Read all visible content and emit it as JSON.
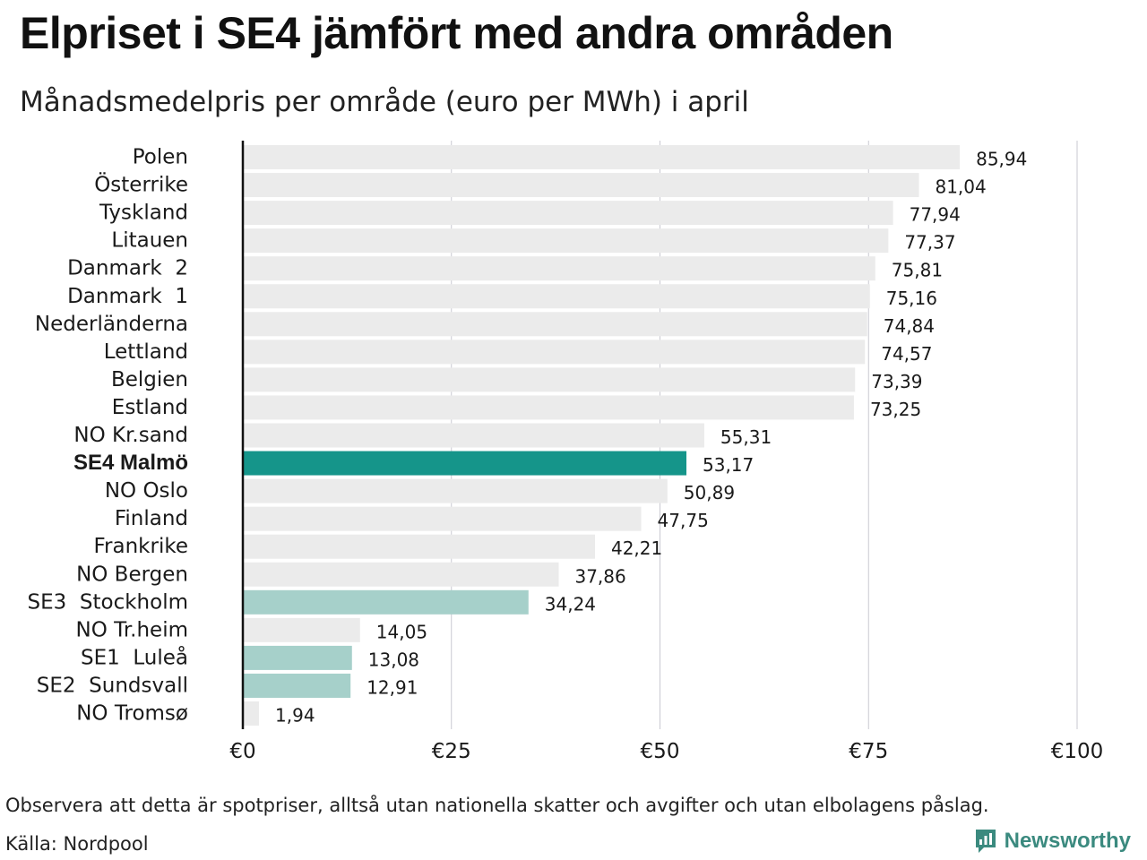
{
  "title": "Elpriset i SE4 jämfört med andra områden",
  "subtitle": "Månadsmedelpris per område (euro per MWh) i april",
  "footnote": "Observera att detta är spotpriser, alltså utan nationella skatter och avgifter och utan elbolagens påslag.",
  "source": "Källa: Nordpool",
  "brand": {
    "name": "Newsworthy",
    "icon": "newsworthy-logo-icon",
    "color": "#3b8a7f"
  },
  "colors": {
    "default_bar": "#ebebeb",
    "highlight_bar": "#15958a",
    "secondary_bar": "#a6d0ca",
    "grid": "#c9c9d1",
    "axis": "#111111"
  },
  "chart_data": {
    "type": "bar",
    "orientation": "horizontal",
    "title": "Elpriset i SE4 jämfört med andra områden",
    "subtitle": "Månadsmedelpris per område (euro per MWh) i april",
    "xlim": [
      0,
      100
    ],
    "xticks": [
      0,
      25,
      50,
      75,
      100
    ],
    "xtick_labels": [
      "€0",
      "€25",
      "€50",
      "€75",
      "€100"
    ],
    "grid": true,
    "bars": [
      {
        "label": "Polen",
        "value": 85.94,
        "value_label": "85,94",
        "highlight": "default"
      },
      {
        "label": "Österrike",
        "value": 81.04,
        "value_label": "81,04",
        "highlight": "default"
      },
      {
        "label": "Tyskland",
        "value": 77.94,
        "value_label": "77,94",
        "highlight": "default"
      },
      {
        "label": "Litauen",
        "value": 77.37,
        "value_label": "77,37",
        "highlight": "default"
      },
      {
        "label": "Danmark  2",
        "value": 75.81,
        "value_label": "75,81",
        "highlight": "default"
      },
      {
        "label": "Danmark  1",
        "value": 75.16,
        "value_label": "75,16",
        "highlight": "default"
      },
      {
        "label": "Nederländerna",
        "value": 74.84,
        "value_label": "74,84",
        "highlight": "default"
      },
      {
        "label": "Lettland",
        "value": 74.57,
        "value_label": "74,57",
        "highlight": "default"
      },
      {
        "label": "Belgien",
        "value": 73.39,
        "value_label": "73,39",
        "highlight": "default"
      },
      {
        "label": "Estland",
        "value": 73.25,
        "value_label": "73,25",
        "highlight": "default"
      },
      {
        "label": "NO Kr.sand",
        "value": 55.31,
        "value_label": "55,31",
        "highlight": "default"
      },
      {
        "label": "SE4 Malmö",
        "value": 53.17,
        "value_label": "53,17",
        "highlight": "primary"
      },
      {
        "label": "NO Oslo",
        "value": 50.89,
        "value_label": "50,89",
        "highlight": "default"
      },
      {
        "label": "Finland",
        "value": 47.75,
        "value_label": "47,75",
        "highlight": "default"
      },
      {
        "label": "Frankrike",
        "value": 42.21,
        "value_label": "42,21",
        "highlight": "default"
      },
      {
        "label": "NO Bergen",
        "value": 37.86,
        "value_label": "37,86",
        "highlight": "default"
      },
      {
        "label": "SE3  Stockholm",
        "value": 34.24,
        "value_label": "34,24",
        "highlight": "secondary"
      },
      {
        "label": "NO Tr.heim",
        "value": 14.05,
        "value_label": "14,05",
        "highlight": "default"
      },
      {
        "label": "SE1  Luleå",
        "value": 13.08,
        "value_label": "13,08",
        "highlight": "secondary"
      },
      {
        "label": "SE2  Sundsvall",
        "value": 12.91,
        "value_label": "12,91",
        "highlight": "secondary"
      },
      {
        "label": "NO Tromsø",
        "value": 1.94,
        "value_label": "1,94",
        "highlight": "default"
      }
    ]
  }
}
